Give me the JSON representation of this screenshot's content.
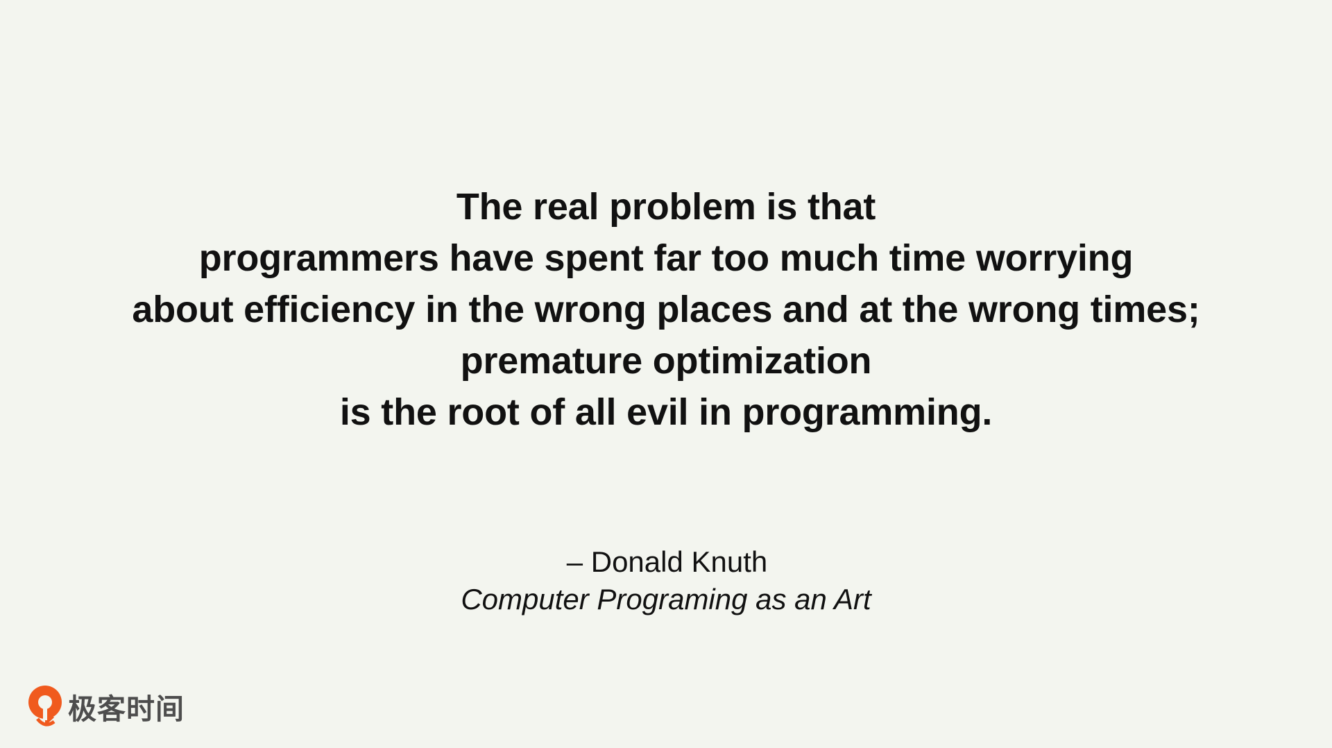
{
  "quote": {
    "lines": [
      "The real problem is that",
      "programmers have spent far too much time worrying",
      "about efficiency in the wrong places and at the wrong times;",
      "premature optimization",
      "is the root of all evil in programming."
    ]
  },
  "attribution": {
    "author": "– Donald Knuth",
    "work": "Computer Programing as an Art"
  },
  "logo": {
    "icon": "geektime-logo-icon",
    "text": "极客时间",
    "color": "#f05a1e"
  }
}
